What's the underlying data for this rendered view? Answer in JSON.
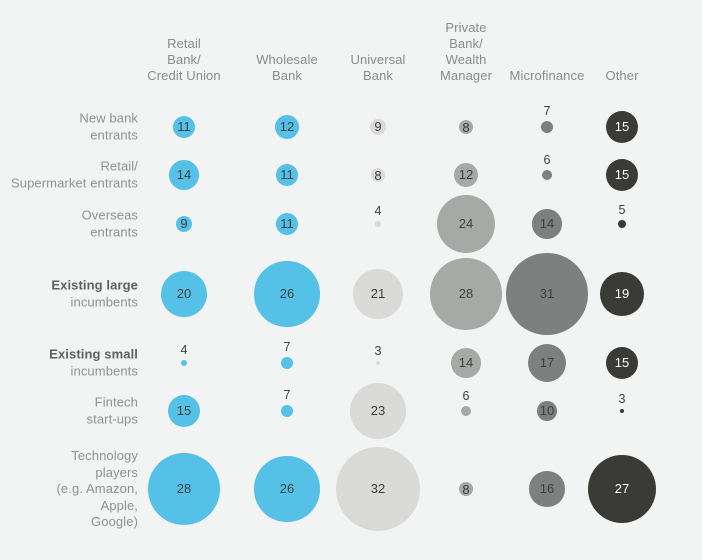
{
  "page": {
    "background_color": "#f2f3f3",
    "accent_blue": "#56c1e6",
    "dark_bubble_color": "#3a3b36"
  },
  "chart_data": {
    "type": "bubble",
    "subtype": "bubble-matrix",
    "title": "",
    "legend_position": "none",
    "grid": false,
    "value_label_inside_min": 8,
    "above_label_color": "#3d3f41",
    "columns": [
      {
        "label": "Retail Bank/ Credit Union",
        "label_lines": [
          "Retail",
          "Bank/",
          "Credit Union"
        ],
        "color": "#56c1e6",
        "text_color": "#3d3f41"
      },
      {
        "label": "Wholesale Bank",
        "label_lines": [
          "Wholesale",
          "Bank"
        ],
        "color": "#56c1e6",
        "text_color": "#3d3f41"
      },
      {
        "label": "Universal Bank",
        "label_lines": [
          "Universal",
          "Bank"
        ],
        "color": "#dadad8",
        "text_color": "#3d3f41"
      },
      {
        "label": "Private Bank/ Wealth Manager",
        "label_lines": [
          "Private",
          "Bank/",
          "Wealth",
          "Manager"
        ],
        "color": "#a7a9a7",
        "text_color": "#3d3f41"
      },
      {
        "label": "Microfinance",
        "label_lines": [
          "Microfinance"
        ],
        "color": "#7e807f",
        "text_color": "#3d3f41"
      },
      {
        "label": "Other",
        "label_lines": [
          "Other"
        ],
        "color": "#3a3b36",
        "text_color": "#ffffff"
      }
    ],
    "rows": [
      {
        "label": "New bank entrants",
        "label_lines": [
          {
            "text": "New bank",
            "bold": false
          },
          {
            "text": "entrants",
            "bold": false
          }
        ],
        "values": [
          11,
          12,
          9,
          8,
          7,
          15
        ]
      },
      {
        "label": "Retail/ Supermarket entrants",
        "label_lines": [
          {
            "text": "Retail/",
            "bold": false
          },
          {
            "text": "Supermarket entrants",
            "bold": false
          }
        ],
        "values": [
          14,
          11,
          8,
          12,
          6,
          15
        ]
      },
      {
        "label": "Overseas entrants",
        "label_lines": [
          {
            "text": "Overseas",
            "bold": false
          },
          {
            "text": "entrants",
            "bold": false
          }
        ],
        "values": [
          9,
          11,
          4,
          24,
          14,
          5
        ]
      },
      {
        "label": "Existing large incumbents",
        "label_lines": [
          {
            "text": "Existing large",
            "bold": true
          },
          {
            "text": "incumbents",
            "bold": false
          }
        ],
        "values": [
          20,
          26,
          21,
          28,
          31,
          19
        ]
      },
      {
        "label": "Existing small incumbents",
        "label_lines": [
          {
            "text": "Existing small",
            "bold": true
          },
          {
            "text": "incumbents",
            "bold": false
          }
        ],
        "values": [
          4,
          7,
          3,
          14,
          17,
          15
        ]
      },
      {
        "label": "Fintech start-ups",
        "label_lines": [
          {
            "text": "Fintech",
            "bold": false
          },
          {
            "text": "start-ups",
            "bold": false
          }
        ],
        "values": [
          15,
          7,
          23,
          6,
          10,
          3
        ]
      },
      {
        "label": "Technology players (e.g. Amazon, Apple, Google)",
        "label_lines": [
          {
            "text": "Technology",
            "bold": false
          },
          {
            "text": "players",
            "bold": false
          },
          {
            "text": "(e.g. Amazon,",
            "bold": false
          },
          {
            "text": "Apple,",
            "bold": false
          },
          {
            "text": "Google)",
            "bold": false
          }
        ],
        "values": [
          28,
          26,
          32,
          8,
          16,
          27
        ]
      }
    ]
  }
}
